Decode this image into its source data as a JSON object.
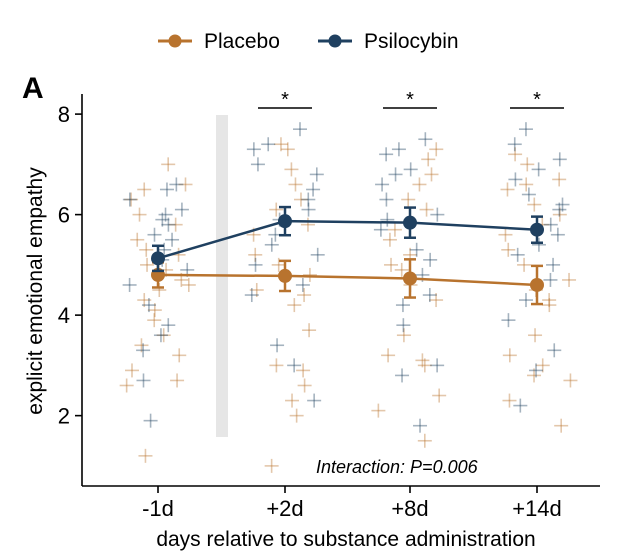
{
  "chart_data": {
    "type": "line",
    "panel_label": "A",
    "xlabel": "days relative to substance administration",
    "ylabel": "explicit emotional empathy",
    "categories": [
      "-1d",
      "+2d",
      "+8d",
      "+14d"
    ],
    "ylim": [
      0.6,
      8.4
    ],
    "yticks": [
      2,
      4,
      6,
      8
    ],
    "legend_position": "top",
    "annotation": "Interaction: P=0.006",
    "significance": [
      {
        "category": "+2d",
        "label": "*"
      },
      {
        "category": "+8d",
        "label": "*"
      },
      {
        "category": "+14d",
        "label": "*"
      }
    ],
    "series": [
      {
        "name": "Placebo",
        "color": "#b8732e",
        "marker": "circle",
        "values": [
          4.8,
          4.78,
          4.73,
          4.6
        ],
        "error": [
          0.25,
          0.3,
          0.38,
          0.38
        ],
        "individual_points": [
          [
            7.0,
            6.6,
            6.5,
            6.3,
            6.0,
            5.8,
            5.5,
            5.3,
            5.2,
            5.0,
            4.9,
            4.7,
            4.6,
            4.5,
            4.3,
            4.1,
            3.9,
            3.6,
            3.4,
            3.2,
            2.9,
            2.7,
            2.6,
            1.2
          ],
          [
            7.4,
            7.3,
            6.9,
            6.6,
            6.3,
            6.1,
            5.8,
            5.6,
            5.2,
            5.0,
            4.8,
            4.5,
            4.4,
            4.2,
            3.7,
            3.0,
            2.9,
            2.6,
            2.3,
            2.0,
            1.0
          ],
          [
            7.3,
            7.1,
            6.8,
            6.6,
            6.3,
            6.1,
            5.7,
            5.5,
            5.2,
            5.0,
            4.9,
            4.6,
            4.3,
            3.6,
            3.2,
            3.1,
            3.0,
            2.4,
            2.1,
            1.5
          ],
          [
            7.2,
            7.0,
            6.7,
            6.6,
            6.5,
            6.2,
            6.0,
            5.8,
            5.6,
            5.3,
            5.0,
            4.7,
            4.5,
            4.3,
            4.2,
            3.6,
            3.2,
            3.0,
            2.8,
            2.7,
            2.3,
            1.8
          ]
        ]
      },
      {
        "name": "Psilocybin",
        "color": "#1f4060",
        "marker": "circle",
        "values": [
          5.13,
          5.87,
          5.84,
          5.7
        ],
        "error": [
          0.25,
          0.28,
          0.3,
          0.26
        ],
        "individual_points": [
          [
            6.6,
            6.5,
            6.3,
            6.1,
            6.0,
            5.9,
            5.8,
            5.6,
            5.5,
            5.3,
            5.1,
            4.9,
            4.6,
            4.2,
            3.8,
            3.6,
            3.3,
            2.7,
            1.9
          ],
          [
            7.7,
            7.4,
            7.3,
            7.0,
            6.8,
            6.5,
            6.3,
            6.1,
            5.9,
            5.6,
            5.4,
            5.2,
            5.0,
            4.6,
            4.4,
            3.4,
            3.0,
            2.3
          ],
          [
            7.5,
            7.3,
            7.2,
            6.9,
            6.8,
            6.6,
            6.3,
            6.0,
            5.9,
            5.7,
            5.3,
            5.1,
            4.8,
            4.4,
            4.2,
            3.8,
            3.0,
            2.8,
            1.8
          ],
          [
            7.7,
            7.4,
            7.1,
            6.9,
            6.7,
            6.4,
            6.2,
            6.1,
            5.8,
            5.6,
            5.4,
            5.2,
            5.0,
            4.7,
            4.3,
            3.9,
            3.3,
            2.9,
            2.2
          ]
        ]
      }
    ]
  }
}
